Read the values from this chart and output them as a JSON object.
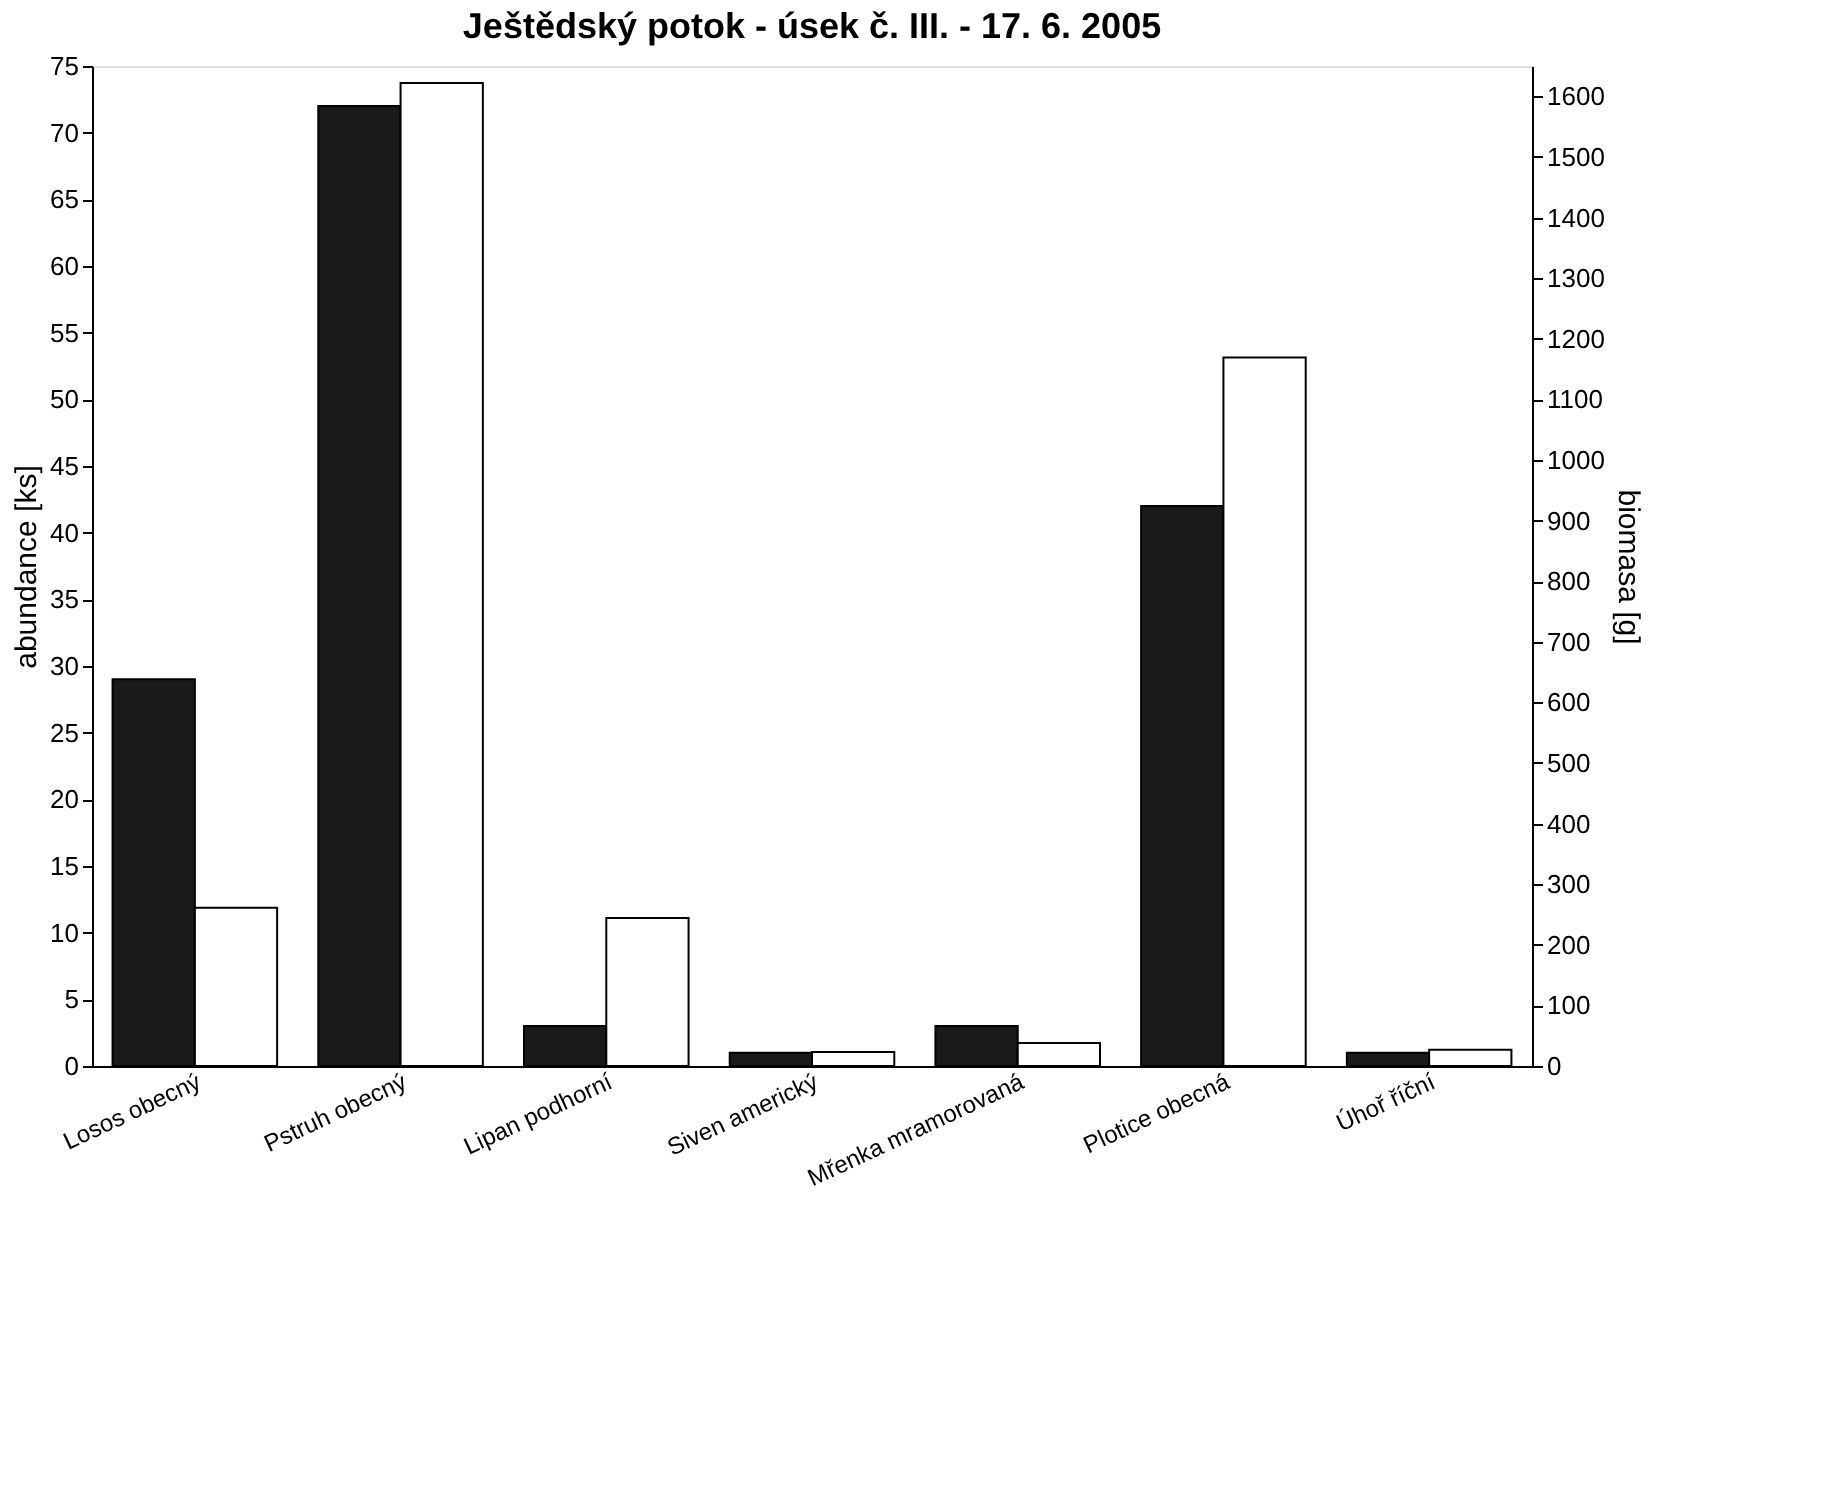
{
  "chart_data": {
    "type": "bar",
    "title": "Ještědský  potok - úsek č. III. -  17. 6. 2005",
    "categories": [
      "Losos obecný",
      "Pstruh obecný",
      "Lipan podhorní",
      "Siven americký",
      "Mřenka mramorovaná",
      "Plotice obecná",
      "Úhoř říční"
    ],
    "series": [
      {
        "color": "#1a1a1a",
        "values": [
          29,
          72,
          3,
          1,
          3,
          42,
          1
        ]
      },
      {
        "color": "#ffffff",
        "axis": "y2",
        "values": [
          261,
          1622,
          244,
          23,
          38,
          1169,
          27
        ]
      }
    ],
    "ylabel": "abundance [ks]",
    "y2label": "biomasa [g]",
    "ylim": [
      0,
      75
    ],
    "yticks": [
      0,
      5,
      10,
      15,
      20,
      25,
      30,
      35,
      40,
      45,
      50,
      55,
      60,
      65,
      70,
      75
    ],
    "y2lim": [
      0,
      1650
    ],
    "y2ticks": [
      0,
      100,
      200,
      300,
      400,
      500,
      600,
      700,
      800,
      900,
      1000,
      1100,
      1200,
      1300,
      1400,
      1500,
      1600
    ],
    "grid": false
  }
}
